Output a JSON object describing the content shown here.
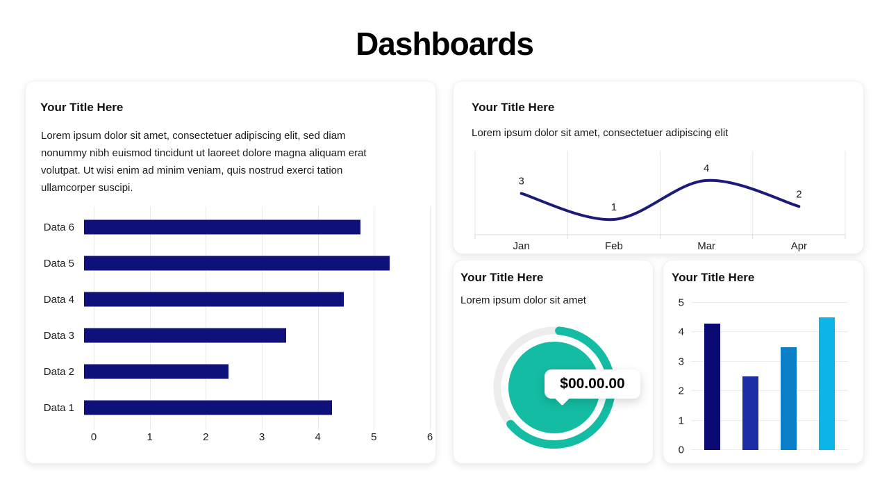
{
  "page": {
    "title": "Dashboards"
  },
  "cards": {
    "hbar": {
      "title": "Your Title Here",
      "body": "Lorem ipsum dolor sit amet, consectetuer adipiscing elit, sed diam nonummy nibh euismod tincidunt ut laoreet dolore magna aliquam erat volutpat. Ut wisi enim ad minim veniam, quis nostrud exerci tation ullamcorper suscipi."
    },
    "line": {
      "title": "Your Title Here",
      "subtitle": "Lorem ipsum dolor sit amet, consectetuer adipiscing elit"
    },
    "gauge": {
      "title": "Your Title Here",
      "subtitle": "Lorem ipsum dolor sit amet"
    },
    "vbar": {
      "title": "Your Title Here"
    }
  },
  "chart_data": [
    {
      "type": "bar",
      "orientation": "horizontal",
      "categories": [
        "Data 6",
        "Data 5",
        "Data 4",
        "Data 3",
        "Data 2",
        "Data 1"
      ],
      "values": [
        4.8,
        5.3,
        4.5,
        3.5,
        2.5,
        4.3
      ],
      "xlim": [
        0,
        6
      ],
      "xticks": [
        0,
        1,
        2,
        3,
        4,
        5,
        6
      ],
      "bar_color": "#10107a",
      "grid": true,
      "legend": false
    },
    {
      "type": "line",
      "x": [
        "Jan",
        "Feb",
        "Mar",
        "Apr"
      ],
      "values": [
        3,
        1,
        4,
        2
      ],
      "line_color": "#1b1b79",
      "smooth": true,
      "data_labels": true,
      "grid": "vertical",
      "legend": false
    },
    {
      "type": "gauge",
      "value_label": "$00.00.00",
      "progress_fraction": 0.625,
      "accent": "#14bca3",
      "track_color": "#ededed"
    },
    {
      "type": "bar",
      "orientation": "vertical",
      "categories": [
        "",
        "",
        "",
        ""
      ],
      "values": [
        4.3,
        2.5,
        3.5,
        4.5
      ],
      "bar_colors": [
        "#0a0a72",
        "#1c2da6",
        "#0a80ca",
        "#0cb5e8"
      ],
      "ylim": [
        0,
        5
      ],
      "yticks": [
        0,
        1,
        2,
        3,
        4,
        5
      ],
      "grid": true,
      "legend": false
    }
  ]
}
